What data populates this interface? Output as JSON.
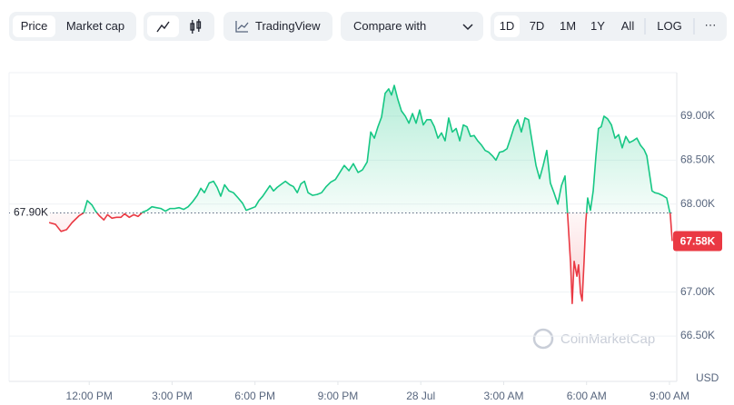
{
  "toolbar": {
    "view": [
      "Price",
      "Market cap"
    ],
    "tradingview": "TradingView",
    "compare": "Compare with",
    "ranges": [
      "1D",
      "7D",
      "1M",
      "1Y",
      "All"
    ],
    "log": "LOG",
    "more": "···"
  },
  "chart_data": {
    "type": "line",
    "xlim": [
      9.1,
      33.1
    ],
    "xticks": [
      {
        "value": 12,
        "label": "12:00 PM"
      },
      {
        "value": 15,
        "label": "3:00 PM"
      },
      {
        "value": 18,
        "label": "6:00 PM"
      },
      {
        "value": 21,
        "label": "9:00 PM"
      },
      {
        "value": 24,
        "label": "28 Jul"
      },
      {
        "value": 27,
        "label": "3:00 AM"
      },
      {
        "value": 30,
        "label": "6:00 AM"
      },
      {
        "value": 33,
        "label": "9:00 AM"
      }
    ],
    "ylim": [
      66000,
      69500
    ],
    "yticks": [
      {
        "value": 66500,
        "label": "66.50K"
      },
      {
        "value": 67000,
        "label": "67.00K"
      },
      {
        "value": 68000,
        "label": "68.00K"
      },
      {
        "value": 68500,
        "label": "68.50K"
      },
      {
        "value": 69000,
        "label": "69.00K"
      }
    ],
    "grid": true,
    "baseline": {
      "value": 67900,
      "label": "67.90K"
    },
    "current": {
      "value": 67580,
      "label": "67.58K"
    },
    "up_color": "#16c784",
    "down_color": "#ea3943",
    "watermark": "CoinMarketCap",
    "unit": "USD",
    "x": [
      10.55,
      10.78,
      10.98,
      11.18,
      11.38,
      11.64,
      11.8,
      11.93,
      12.1,
      12.23,
      12.36,
      12.53,
      12.66,
      12.82,
      12.99,
      13.15,
      13.28,
      13.45,
      13.61,
      13.77,
      13.94,
      14.1,
      14.27,
      14.43,
      14.6,
      14.76,
      14.92,
      15.09,
      15.25,
      15.42,
      15.58,
      15.75,
      15.91,
      16.04,
      16.17,
      16.34,
      16.5,
      16.63,
      16.76,
      16.9,
      17.06,
      17.22,
      17.39,
      17.55,
      17.68,
      17.85,
      18.01,
      18.14,
      18.28,
      18.41,
      18.54,
      18.67,
      18.8,
      18.97,
      19.1,
      19.26,
      19.39,
      19.53,
      19.66,
      19.79,
      19.92,
      20.08,
      20.25,
      20.41,
      20.58,
      20.74,
      20.91,
      21.07,
      21.23,
      21.4,
      21.56,
      21.73,
      21.89,
      22.06,
      22.19,
      22.32,
      22.45,
      22.58,
      22.71,
      22.84,
      22.94,
      23.04,
      23.17,
      23.3,
      23.44,
      23.57,
      23.7,
      23.83,
      23.96,
      24.09,
      24.22,
      24.36,
      24.49,
      24.62,
      24.75,
      24.88,
      25.01,
      25.14,
      25.28,
      25.41,
      25.54,
      25.67,
      25.8,
      25.93,
      26.06,
      26.2,
      26.33,
      26.46,
      26.59,
      26.72,
      26.85,
      26.98,
      27.12,
      27.25,
      27.38,
      27.51,
      27.64,
      27.77,
      27.9,
      28.04,
      28.17,
      28.3,
      28.43,
      28.56,
      28.69,
      28.82,
      28.96,
      29.09,
      29.22,
      29.32,
      29.42,
      29.48,
      29.55,
      29.65,
      29.71,
      29.78,
      29.84,
      29.91,
      29.97,
      30.04,
      30.14,
      30.24,
      30.34,
      30.43,
      30.53,
      30.63,
      30.76,
      30.9,
      31.03,
      31.16,
      31.29,
      31.42,
      31.55,
      31.68,
      31.82,
      31.95,
      32.08,
      32.18,
      32.28,
      32.37,
      32.47,
      32.6,
      32.74,
      32.9,
      33.03,
      33.1
    ],
    "values": [
      67790,
      67770,
      67690,
      67710,
      67790,
      67870,
      67900,
      68040,
      67990,
      67920,
      67870,
      67820,
      67880,
      67840,
      67850,
      67850,
      67890,
      67850,
      67880,
      67860,
      67910,
      67930,
      67970,
      67960,
      67950,
      67920,
      67950,
      67950,
      67960,
      67940,
      67970,
      68030,
      68100,
      68180,
      68130,
      68240,
      68260,
      68190,
      68090,
      68220,
      68150,
      68130,
      68070,
      68010,
      67930,
      67950,
      67970,
      68040,
      68090,
      68150,
      68210,
      68150,
      68190,
      68230,
      68260,
      68220,
      68200,
      68130,
      68230,
      68260,
      68130,
      68100,
      68110,
      68130,
      68200,
      68250,
      68280,
      68360,
      68440,
      68380,
      68460,
      68360,
      68390,
      68480,
      68820,
      68750,
      68880,
      68990,
      69260,
      69310,
      69240,
      69350,
      69190,
      69060,
      69000,
      68920,
      69030,
      68920,
      69070,
      68900,
      68960,
      68960,
      68880,
      68750,
      68810,
      68720,
      68980,
      68820,
      68860,
      68720,
      68900,
      68880,
      68770,
      68780,
      68720,
      68670,
      68610,
      68590,
      68550,
      68500,
      68590,
      68600,
      68630,
      68750,
      68880,
      68960,
      68820,
      68980,
      68960,
      68690,
      68440,
      68290,
      68440,
      68610,
      68240,
      68130,
      68000,
      68210,
      68320,
      67850,
      67330,
      66870,
      67350,
      67180,
      67310,
      66990,
      66900,
      67350,
      67790,
      68070,
      67930,
      68150,
      68550,
      68860,
      68880,
      69000,
      68970,
      68900,
      68750,
      68790,
      68640,
      68770,
      68700,
      68720,
      68750,
      68670,
      68620,
      68550,
      68340,
      68150,
      68130,
      68120,
      68100,
      68070,
      67880,
      67580
    ]
  }
}
